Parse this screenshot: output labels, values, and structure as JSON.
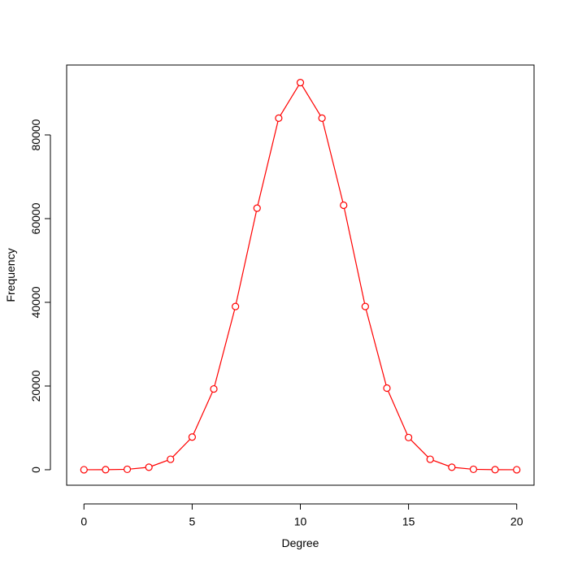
{
  "chart_data": {
    "type": "line",
    "x": [
      0,
      1,
      2,
      3,
      4,
      5,
      6,
      7,
      8,
      9,
      10,
      11,
      12,
      13,
      14,
      15,
      16,
      17,
      18,
      19,
      20
    ],
    "series": [
      {
        "color": "#ff0000",
        "values": [
          0,
          10,
          100,
          600,
          2500,
          7800,
          19300,
          39000,
          62500,
          84000,
          92500,
          84000,
          63200,
          39000,
          19500,
          7700,
          2500,
          600,
          100,
          10,
          0
        ]
      }
    ],
    "xlabel": "Degree",
    "ylabel": "Frequency",
    "xlim": [
      -0.8,
      20.8
    ],
    "xticks": [
      0,
      5,
      10,
      15,
      20
    ],
    "ylim": [
      -3700,
      96700
    ],
    "yticks": [
      0,
      20000,
      40000,
      60000,
      80000
    ],
    "markers": true
  }
}
